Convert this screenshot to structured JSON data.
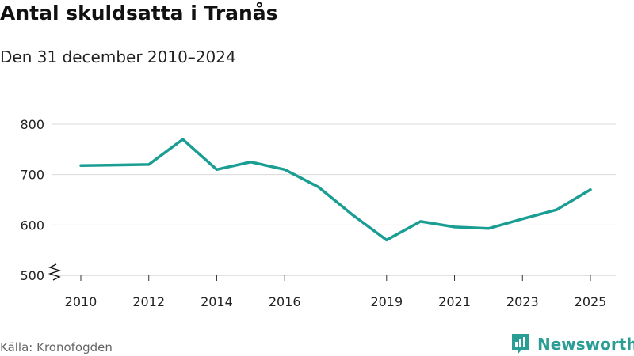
{
  "header": {
    "title": "Antal skuldsatta i Tranås",
    "subtitle": "Den 31 december 2010–2024"
  },
  "footer": {
    "source": "Källa: Kronofogden",
    "brand": "Newsworthy"
  },
  "colors": {
    "line": "#1a9e93",
    "grid": "#d9d9d9",
    "brand": "#2a9d94"
  },
  "chart_data": {
    "type": "line",
    "title": "Antal skuldsatta i Tranås",
    "subtitle": "Den 31 december 2010–2024",
    "xlabel": "",
    "ylabel": "",
    "x": [
      2010,
      2011,
      2012,
      2013,
      2014,
      2015,
      2016,
      2017,
      2018,
      2019,
      2020,
      2021,
      2022,
      2023,
      2024,
      2025
    ],
    "values": [
      718,
      719,
      720,
      770,
      710,
      725,
      710,
      675,
      620,
      570,
      607,
      596,
      593,
      612,
      630,
      670
    ],
    "y_ticks": [
      500,
      600,
      700,
      800
    ],
    "x_ticks": [
      2010,
      2012,
      2014,
      2016,
      2019,
      2021,
      2023,
      2025
    ],
    "ylim": [
      500,
      800
    ],
    "xlim": [
      2010,
      2025
    ],
    "y_axis_break": true,
    "grid": true
  }
}
